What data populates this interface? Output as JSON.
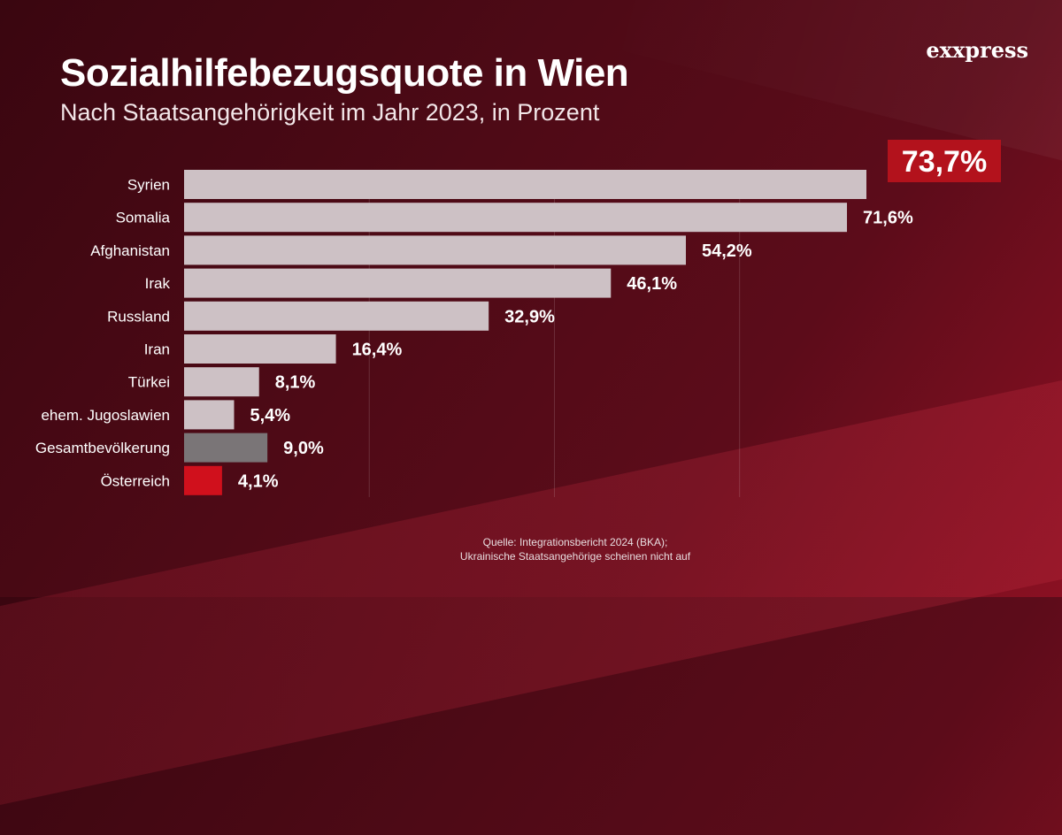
{
  "header": {
    "title": "Sozialhilfebezugsquote in Wien",
    "subtitle": "Nach Staatsangehörigkeit im Jahr 2023, in Prozent"
  },
  "brand": {
    "logo_text": "exxpress"
  },
  "source": {
    "line1": "Quelle: Integrationsbericht 2024 (BKA);",
    "line2": "Ukrainische Staatsangehörige scheinen nicht auf"
  },
  "colors": {
    "bar_default": "#cdc1c5",
    "bar_total": "#7a7577",
    "bar_austria": "#d0101c",
    "highlight_box": "#b3121c"
  },
  "chart_data": {
    "type": "bar",
    "orientation": "horizontal",
    "categories": [
      "Syrien",
      "Somalia",
      "Afghanistan",
      "Irak",
      "Russland",
      "Iran",
      "Türkei",
      "ehem. Jugoslawien",
      "Gesamtbevölkerung",
      "Österreich"
    ],
    "values": [
      73.7,
      71.6,
      54.2,
      46.1,
      32.9,
      16.4,
      8.1,
      5.4,
      9.0,
      4.1
    ],
    "value_labels": [
      "73,7%",
      "71,6%",
      "54,2%",
      "46,1%",
      "32,9%",
      "16,4%",
      "8,1%",
      "5,4%",
      "9,0%",
      "4,1%"
    ],
    "bar_colors": [
      "#cdc1c5",
      "#cdc1c5",
      "#cdc1c5",
      "#cdc1c5",
      "#cdc1c5",
      "#cdc1c5",
      "#cdc1c5",
      "#cdc1c5",
      "#7a7577",
      "#d0101c"
    ],
    "highlighted_index": 0,
    "xlim": [
      0,
      75
    ],
    "grid": true,
    "legend": "none"
  }
}
